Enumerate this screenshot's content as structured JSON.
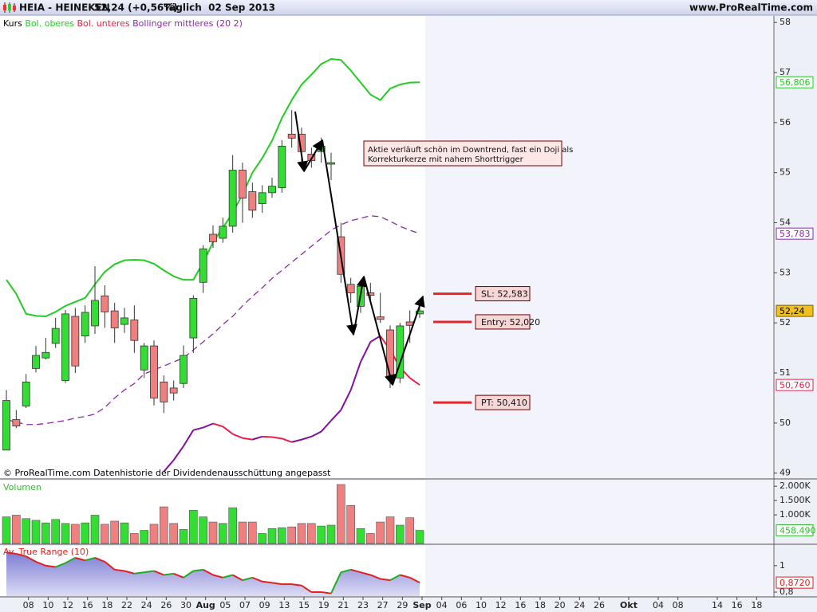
{
  "header": {
    "symbol": "HEIA - HEINEKEN",
    "quote": "52,24 (+0,56%)",
    "period": "Täglich  02 Sep 2013",
    "site": "www.ProRealTime.com"
  },
  "footnote": "© ProRealTime.com Datenhistorie der Dividendenausschüttung angepasst",
  "chart_data": [
    {
      "type": "candlestick",
      "name": "Kurs",
      "open": [
        49.46,
        50.07,
        50.34,
        51.09,
        51.3,
        51.59,
        50.85,
        52.13,
        51.74,
        51.94,
        52.54,
        52.24,
        51.97,
        52.06,
        51.06,
        51.54,
        50.82,
        50.7,
        50.79,
        51.7,
        52.81,
        53.77,
        53.69,
        53.93,
        55.05,
        54.62,
        54.38,
        54.6,
        54.7,
        55.77,
        55.77,
        55.37,
        55.42,
        55.17,
        53.72,
        52.77,
        52.33,
        52.6,
        52.12,
        51.86,
        50.9,
        52.02,
        52.18
      ],
      "high": [
        50.66,
        50.26,
        50.98,
        51.54,
        51.7,
        52.1,
        52.26,
        52.3,
        52.35,
        53.13,
        52.75,
        52.4,
        52.3,
        52.35,
        51.6,
        51.65,
        50.95,
        50.85,
        51.55,
        52.55,
        53.55,
        53.95,
        54.1,
        55.35,
        55.2,
        54.8,
        54.75,
        54.9,
        55.65,
        56.25,
        55.9,
        55.5,
        55.7,
        55.4,
        54.0,
        52.9,
        52.85,
        52.8,
        52.6,
        51.95,
        52.0,
        52.25,
        52.45
      ],
      "low": [
        49.46,
        49.9,
        50.3,
        51.01,
        51.27,
        51.5,
        50.8,
        51.0,
        51.6,
        51.78,
        51.9,
        51.6,
        51.8,
        51.4,
        50.9,
        50.35,
        50.2,
        50.45,
        50.7,
        51.4,
        52.6,
        53.5,
        53.6,
        53.8,
        54.0,
        54.1,
        54.2,
        54.5,
        54.6,
        55.5,
        55.1,
        55.1,
        55.2,
        54.85,
        52.8,
        52.4,
        52.2,
        52.4,
        52.0,
        50.7,
        50.8,
        51.6,
        52.1
      ],
      "close": [
        50.45,
        49.94,
        50.82,
        51.35,
        51.41,
        51.89,
        52.18,
        51.14,
        52.21,
        52.45,
        52.22,
        51.9,
        52.1,
        51.65,
        51.54,
        50.5,
        50.42,
        50.6,
        51.35,
        52.49,
        53.48,
        53.62,
        53.93,
        55.05,
        54.49,
        54.25,
        54.6,
        54.73,
        55.53,
        55.69,
        55.42,
        55.24,
        55.53,
        55.2,
        52.97,
        52.6,
        52.73,
        52.55,
        52.07,
        50.9,
        51.94,
        51.95,
        52.24
      ],
      "up_color": "#33dd33",
      "down_color": "#ee8080",
      "last_label": "52,24",
      "last_color": "#f0c020",
      "series": [
        {
          "name": "Bol. oberes",
          "color": "#22cc22",
          "last_label": "56,806",
          "values": [
            52.86,
            52.58,
            52.18,
            52.14,
            52.13,
            52.22,
            52.34,
            52.42,
            52.5,
            52.77,
            53.02,
            53.17,
            53.25,
            53.26,
            53.25,
            53.18,
            53.05,
            52.93,
            52.86,
            52.86,
            53.21,
            53.61,
            53.9,
            54.2,
            54.57,
            55.0,
            55.29,
            55.64,
            56.09,
            56.45,
            56.76,
            56.96,
            57.17,
            57.27,
            57.25,
            57.04,
            56.8,
            56.56,
            56.45,
            56.68,
            56.76,
            56.8,
            56.806
          ]
        },
        {
          "name": "Bol. unteres",
          "color": "#e8204a",
          "rising_color": "#8010a0",
          "last_label": "50,760",
          "values": [
            null,
            null,
            null,
            null,
            null,
            null,
            null,
            null,
            null,
            null,
            null,
            null,
            null,
            null,
            null,
            null,
            49.03,
            49.26,
            49.54,
            49.86,
            49.91,
            49.99,
            49.93,
            49.78,
            49.7,
            49.67,
            49.73,
            49.72,
            49.69,
            49.62,
            49.67,
            49.73,
            49.83,
            50.05,
            50.26,
            50.66,
            51.22,
            51.62,
            51.74,
            51.46,
            51.11,
            50.9,
            50.76
          ]
        },
        {
          "name": "Bollinger mittleres (20 2)",
          "color": "#8a2aa8",
          "dashed": true,
          "last_label": "53,783",
          "values": [
            50.07,
            50.02,
            49.97,
            49.97,
            49.99,
            50.02,
            50.05,
            50.1,
            50.13,
            50.18,
            50.31,
            50.5,
            50.66,
            50.79,
            50.98,
            51.06,
            51.14,
            51.22,
            51.3,
            51.46,
            51.62,
            51.78,
            51.97,
            52.13,
            52.34,
            52.53,
            52.7,
            52.89,
            53.05,
            53.21,
            53.37,
            53.53,
            53.69,
            53.85,
            53.96,
            54.04,
            54.09,
            54.14,
            54.12,
            54.03,
            53.93,
            53.85,
            53.783
          ]
        }
      ],
      "levels": [
        {
          "label": "SL: 52,583",
          "value": 52.583
        },
        {
          "label": "Entry: 52,020",
          "value": 52.02
        },
        {
          "label": "PT: 50,410",
          "value": 50.41
        }
      ],
      "level_color": "#e02828",
      "annotation": [
        "Aktie verläuft schön im Downtrend, fast ein Doji als",
        "Korrekturkerze mit nahem Shorttrigger"
      ],
      "xlim": [
        -0.65,
        78
      ],
      "xticks": [
        {
          "value": 2,
          "label": "08"
        },
        {
          "value": 4,
          "label": "10"
        },
        {
          "value": 6,
          "label": "12"
        },
        {
          "value": 8,
          "label": "16"
        },
        {
          "value": 10,
          "label": "18"
        },
        {
          "value": 12,
          "label": "22"
        },
        {
          "value": 14,
          "label": "24"
        },
        {
          "value": 16,
          "label": "26"
        },
        {
          "value": 18,
          "label": "30"
        },
        {
          "value": 20,
          "label": "Aug"
        },
        {
          "value": 22,
          "label": "05"
        },
        {
          "value": 24,
          "label": "07"
        },
        {
          "value": 26,
          "label": "09"
        },
        {
          "value": 28,
          "label": "13"
        },
        {
          "value": 30,
          "label": "15"
        },
        {
          "value": 32,
          "label": "19"
        },
        {
          "value": 34,
          "label": "21"
        },
        {
          "value": 36,
          "label": "23"
        },
        {
          "value": 38,
          "label": "27"
        },
        {
          "value": 40,
          "label": "29"
        },
        {
          "value": 42,
          "label": "Sep"
        },
        {
          "value": 44,
          "label": "04"
        },
        {
          "value": 46,
          "label": "06"
        },
        {
          "value": 48,
          "label": "10"
        },
        {
          "value": 50,
          "label": "12"
        },
        {
          "value": 52,
          "label": "16"
        },
        {
          "value": 54,
          "label": "18"
        },
        {
          "value": 56,
          "label": "20"
        },
        {
          "value": 58,
          "label": "24"
        },
        {
          "value": 60,
          "label": "26"
        },
        {
          "value": 63,
          "label": "Okt"
        },
        {
          "value": 66,
          "label": "04"
        },
        {
          "value": 68,
          "label": "08"
        },
        {
          "value": 72,
          "label": "14"
        },
        {
          "value": 74,
          "label": "16"
        },
        {
          "value": 76,
          "label": "18"
        }
      ],
      "ylim": [
        48.9,
        58.13
      ],
      "yticks": [
        49,
        50,
        51,
        52,
        53,
        54,
        55,
        56,
        57,
        58
      ]
    },
    {
      "type": "bar",
      "name": "Volumen",
      "color": "#33bb33",
      "values": [
        930000,
        990000,
        870000,
        810000,
        720000,
        840000,
        700000,
        670000,
        720000,
        990000,
        670000,
        780000,
        720000,
        350000,
        460000,
        670000,
        1280000,
        700000,
        490000,
        1160000,
        930000,
        750000,
        700000,
        1250000,
        750000,
        750000,
        350000,
        520000,
        550000,
        580000,
        700000,
        700000,
        610000,
        640000,
        2060000,
        1330000,
        520000,
        350000,
        750000,
        930000,
        640000,
        900000,
        458490
      ],
      "last_label": "458.490",
      "ylim": [
        0,
        2200000
      ],
      "yticks": [
        {
          "value": 1000000,
          "label": "1.000K"
        },
        {
          "value": 1500000,
          "label": "1.500K"
        },
        {
          "value": 2000000,
          "label": "2.000K"
        }
      ]
    },
    {
      "type": "area",
      "name": "Av. True Range (10)",
      "color": "#e02020",
      "rising_color": "#22aa22",
      "values": [
        1.1,
        1.09,
        1.07,
        1.03,
        1.0,
        0.99,
        1.02,
        1.06,
        1.04,
        1.06,
        1.03,
        0.97,
        0.96,
        0.94,
        0.95,
        0.96,
        0.93,
        0.94,
        0.91,
        0.96,
        0.97,
        0.93,
        0.91,
        0.93,
        0.89,
        0.91,
        0.88,
        0.87,
        0.86,
        0.86,
        0.85,
        0.8,
        0.8,
        0.79,
        0.95,
        0.97,
        0.95,
        0.93,
        0.9,
        0.89,
        0.93,
        0.91,
        0.872
      ],
      "last_label": "0,8720",
      "ylim": [
        0.77,
        1.15
      ],
      "yticks": [
        {
          "value": 0.8,
          "label": "0,8"
        },
        1
      ]
    }
  ]
}
